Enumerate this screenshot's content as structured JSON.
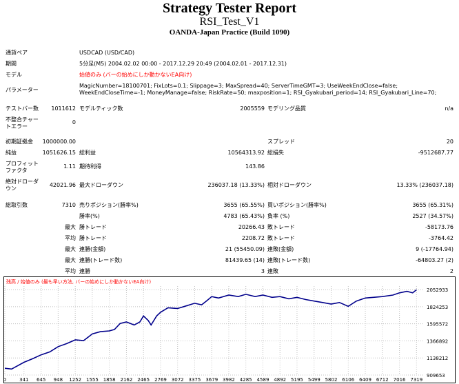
{
  "header": {
    "title": "Strategy Tester Report",
    "ea_name": "RSI_Test_V1",
    "server": "OANDA-Japan Practice (Build 1090)"
  },
  "info": {
    "symbol_label": "通貨ペア",
    "symbol_value": "USDCAD (USD/CAD)",
    "period_label": "期間",
    "period_value": "5分足(M5) 2004.02.02 00:00 - 2017.12.29 20:49 (2004.02.01 - 2017.12.31)",
    "model_label": "モデル",
    "model_value": "始値のみ (バーの始めにしか動かないEA向け)",
    "params_label": "パラメーター",
    "params_value": "MagicNumber=18100701; FixLots=0.1; Slippage=3; MaxSpread=40; ServerTimeGMT=3; UseWeekEndClose=false; WeekEndCloseTime=-1; MoneyManage=false; RiskRate=50; maxposition=1; RSI_Gyakubari_period=14; RSI_Gyakubari_Line=70;"
  },
  "stats": {
    "bars_label": "テストバー数",
    "bars_value": "1011612",
    "ticks_label": "モデルティック数",
    "ticks_value": "2005559",
    "quality_label": "モデリング品質",
    "quality_value": "n/a",
    "mismatch_label1": "不整合チャー",
    "mismatch_label2": "トエラー",
    "mismatch_value": "0",
    "deposit_label": "初期証拠金",
    "deposit_value": "1000000.00",
    "spread_label": "スプレッド",
    "spread_value": "20",
    "net_label": "純益",
    "net_value": "1051626.15",
    "gross_profit_label": "総利益",
    "gross_profit_value": "10564313.92",
    "gross_loss_label": "総損失",
    "gross_loss_value": "-9512687.77",
    "pf_label1": "プロフィット",
    "pf_label2": "ファクタ",
    "pf_value": "1.11",
    "expected_label": "期待利得",
    "expected_value": "143.86",
    "abs_dd_label1": "絶対ドローダ",
    "abs_dd_label2": "ウン",
    "abs_dd_value": "42021.96",
    "max_dd_label": "最大ドローダウン",
    "max_dd_value": "236037.18 (13.33%)",
    "rel_dd_label": "相対ドローダウン",
    "rel_dd_value": "13.33% (236037.18)",
    "trades_label": "総取引数",
    "trades_value": "7310",
    "short_label": "売りポジション(勝率%)",
    "short_value": "3655 (65.55%)",
    "long_label": "買いポジション(勝率%)",
    "long_value": "3655 (65.31%)",
    "win_label": "勝率(%)",
    "win_value": "4783 (65.43%)",
    "loss_label": "負率 (%)",
    "loss_value": "2527 (34.57%)",
    "max_label": "最大",
    "max_win_label": "勝トレード",
    "max_win_value": "20266.43",
    "max_loss_label": "敗トレード",
    "max_loss_value": "-58173.76",
    "avg_label": "平均",
    "avg_win_label": "勝トレード",
    "avg_win_value": "2208.72",
    "avg_loss_label": "敗トレード",
    "avg_loss_value": "-3764.42",
    "max2_label": "最大",
    "cons_win_label": "連勝(金額)",
    "cons_win_value": "21 (55450.09)",
    "cons_loss_label": "連敗(金額)",
    "cons_loss_value": "9 (-17764.94)",
    "max3_label": "最大",
    "cons_profit_label": "連勝(トレード数)",
    "cons_profit_value": "81439.65 (14)",
    "cons_lossamt_label": "連敗(トレード数)",
    "cons_lossamt_value": "-64803.27 (2)",
    "avg2_label": "平均",
    "avg_cons_win_label": "連勝",
    "avg_cons_win_value": "3",
    "avg_cons_loss_label": "連敗",
    "avg_cons_loss_value": "2"
  },
  "chart_data": {
    "type": "line",
    "title": "残高 / 始値のみ (最も早い方法, バーの始めにしか動かないEA向け)",
    "title_color": "#ff0000",
    "line_color": "#00008b",
    "x_ticks": [
      0,
      341,
      645,
      948,
      1252,
      1555,
      1858,
      2162,
      2465,
      2769,
      3072,
      3375,
      3679,
      3982,
      4285,
      4589,
      4892,
      5195,
      5499,
      5802,
      6106,
      6409,
      6712,
      7016,
      7319
    ],
    "y_ticks": [
      909653,
      1138212,
      1366892,
      1595572,
      1824253,
      2052933
    ],
    "ylim": [
      909653,
      2100000
    ],
    "xlim": [
      0,
      7450
    ],
    "grid": true,
    "series": [
      {
        "x": [
          0,
          120,
          341,
          500,
          645,
          800,
          948,
          1100,
          1252,
          1400,
          1555,
          1700,
          1858,
          1950,
          2050,
          2162,
          2300,
          2400,
          2465,
          2550,
          2600,
          2700,
          2769,
          2900,
          3072,
          3200,
          3375,
          3500,
          3600,
          3679,
          3800,
          3982,
          4150,
          4285,
          4450,
          4589,
          4750,
          4892,
          5050,
          5195,
          5350,
          5499,
          5650,
          5802,
          5950,
          6106,
          6250,
          6409,
          6550,
          6712,
          6900,
          7016,
          7150,
          7250,
          7319
        ],
        "y": [
          1000000,
          990000,
          1080000,
          1130000,
          1180000,
          1220000,
          1290000,
          1330000,
          1380000,
          1370000,
          1460000,
          1490000,
          1500000,
          1520000,
          1600000,
          1620000,
          1580000,
          1620000,
          1700000,
          1640000,
          1580000,
          1700000,
          1750000,
          1810000,
          1800000,
          1830000,
          1870000,
          1850000,
          1910000,
          1960000,
          1940000,
          1980000,
          1960000,
          1990000,
          1960000,
          1980000,
          1950000,
          1960000,
          1930000,
          1950000,
          1920000,
          1900000,
          1880000,
          1860000,
          1880000,
          1830000,
          1900000,
          1940000,
          1950000,
          1960000,
          1980000,
          2010000,
          2030000,
          2010000,
          2050000
        ]
      }
    ]
  }
}
